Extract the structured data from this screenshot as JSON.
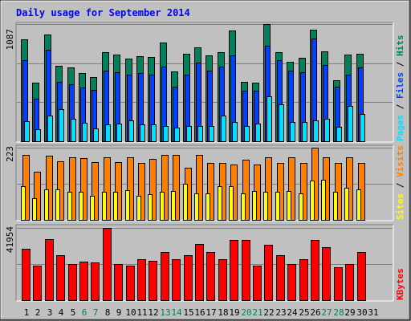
{
  "chart_data": {
    "type": "bar",
    "title": "Daily usage for September 2014",
    "categories": [
      "1",
      "2",
      "3",
      "4",
      "5",
      "6",
      "7",
      "8",
      "9",
      "10",
      "11",
      "12",
      "13",
      "14",
      "15",
      "16",
      "17",
      "18",
      "19",
      "20",
      "21",
      "22",
      "23",
      "24",
      "25",
      "26",
      "27",
      "28",
      "29",
      "30",
      "31"
    ],
    "weekend_days": [
      "6",
      "7",
      "13",
      "14",
      "20",
      "21",
      "27",
      "28"
    ],
    "panels": [
      {
        "name": "hits_files_pages",
        "max_label": "1087",
        "ylim": [
          0,
          1087
        ],
        "legend": [
          "Pages",
          "Files",
          "Hits"
        ],
        "series": [
          {
            "name": "Hits",
            "color": "#00805c",
            "values": [
              942,
              543,
              987,
              700,
              683,
              635,
              598,
              827,
              806,
              767,
              791,
              780,
              917,
              650,
              809,
              868,
              800,
              827,
              1029,
              550,
              543,
              1087,
              825,
              737,
              774,
              1034,
              833,
              563,
              801,
              808,
              0
            ]
          },
          {
            "name": "Files",
            "color": "#0040ff",
            "values": [
              755,
              394,
              847,
              551,
              531,
              500,
              474,
              654,
              638,
              616,
              635,
              621,
              695,
              508,
              620,
              732,
              658,
              690,
              796,
              466,
              466,
              887,
              754,
              656,
              638,
              952,
              707,
              509,
              617,
              686,
              0
            ]
          },
          {
            "name": "Pages",
            "color": "#00e0ff",
            "values": [
              186,
              112,
              240,
              300,
              207,
              174,
              120,
              157,
              162,
              192,
              157,
              157,
              140,
              125,
              140,
              140,
              145,
              240,
              181,
              140,
              162,
              415,
              345,
              181,
              181,
              195,
              209,
              137,
              328,
              253,
              0
            ]
          }
        ]
      },
      {
        "name": "visits_sites",
        "max_label": "223",
        "ylim": [
          0,
          223
        ],
        "legend": [
          "Sites",
          "Visits"
        ],
        "series": [
          {
            "name": "Visits",
            "color": "#ff8000",
            "values": [
              200,
              149,
              199,
              181,
              194,
              190,
              179,
              194,
              179,
              194,
              175,
              188,
              200,
              200,
              160,
              200,
              176,
              176,
              172,
              185,
              172,
              194,
              175,
              194,
              175,
              223,
              194,
              175,
              194,
              175,
              0
            ]
          },
          {
            "name": "Sites",
            "color": "#ffff00",
            "values": [
              103,
              68,
              95,
              93,
              86,
              86,
              75,
              86,
              86,
              92,
              75,
              79,
              86,
              90,
              111,
              82,
              82,
              103,
              105,
              82,
              90,
              86,
              86,
              90,
              82,
              121,
              125,
              86,
              98,
              95,
              0
            ]
          }
        ]
      },
      {
        "name": "kbytes",
        "max_label": "41954",
        "ylim": [
          0,
          41954
        ],
        "legend": [
          "KBytes"
        ],
        "series": [
          {
            "name": "KBytes",
            "color": "#ff0000",
            "values": [
              30000,
              19900,
              35500,
              26300,
              21100,
              22400,
              21700,
              41954,
              20800,
              19900,
              23700,
              23000,
              27800,
              23700,
              26200,
              32700,
              27800,
              23700,
              35000,
              35000,
              20000,
              32000,
              26200,
              21000,
              24000,
              34800,
              30800,
              19000,
              20800,
              27800,
              0
            ]
          }
        ]
      }
    ]
  }
}
